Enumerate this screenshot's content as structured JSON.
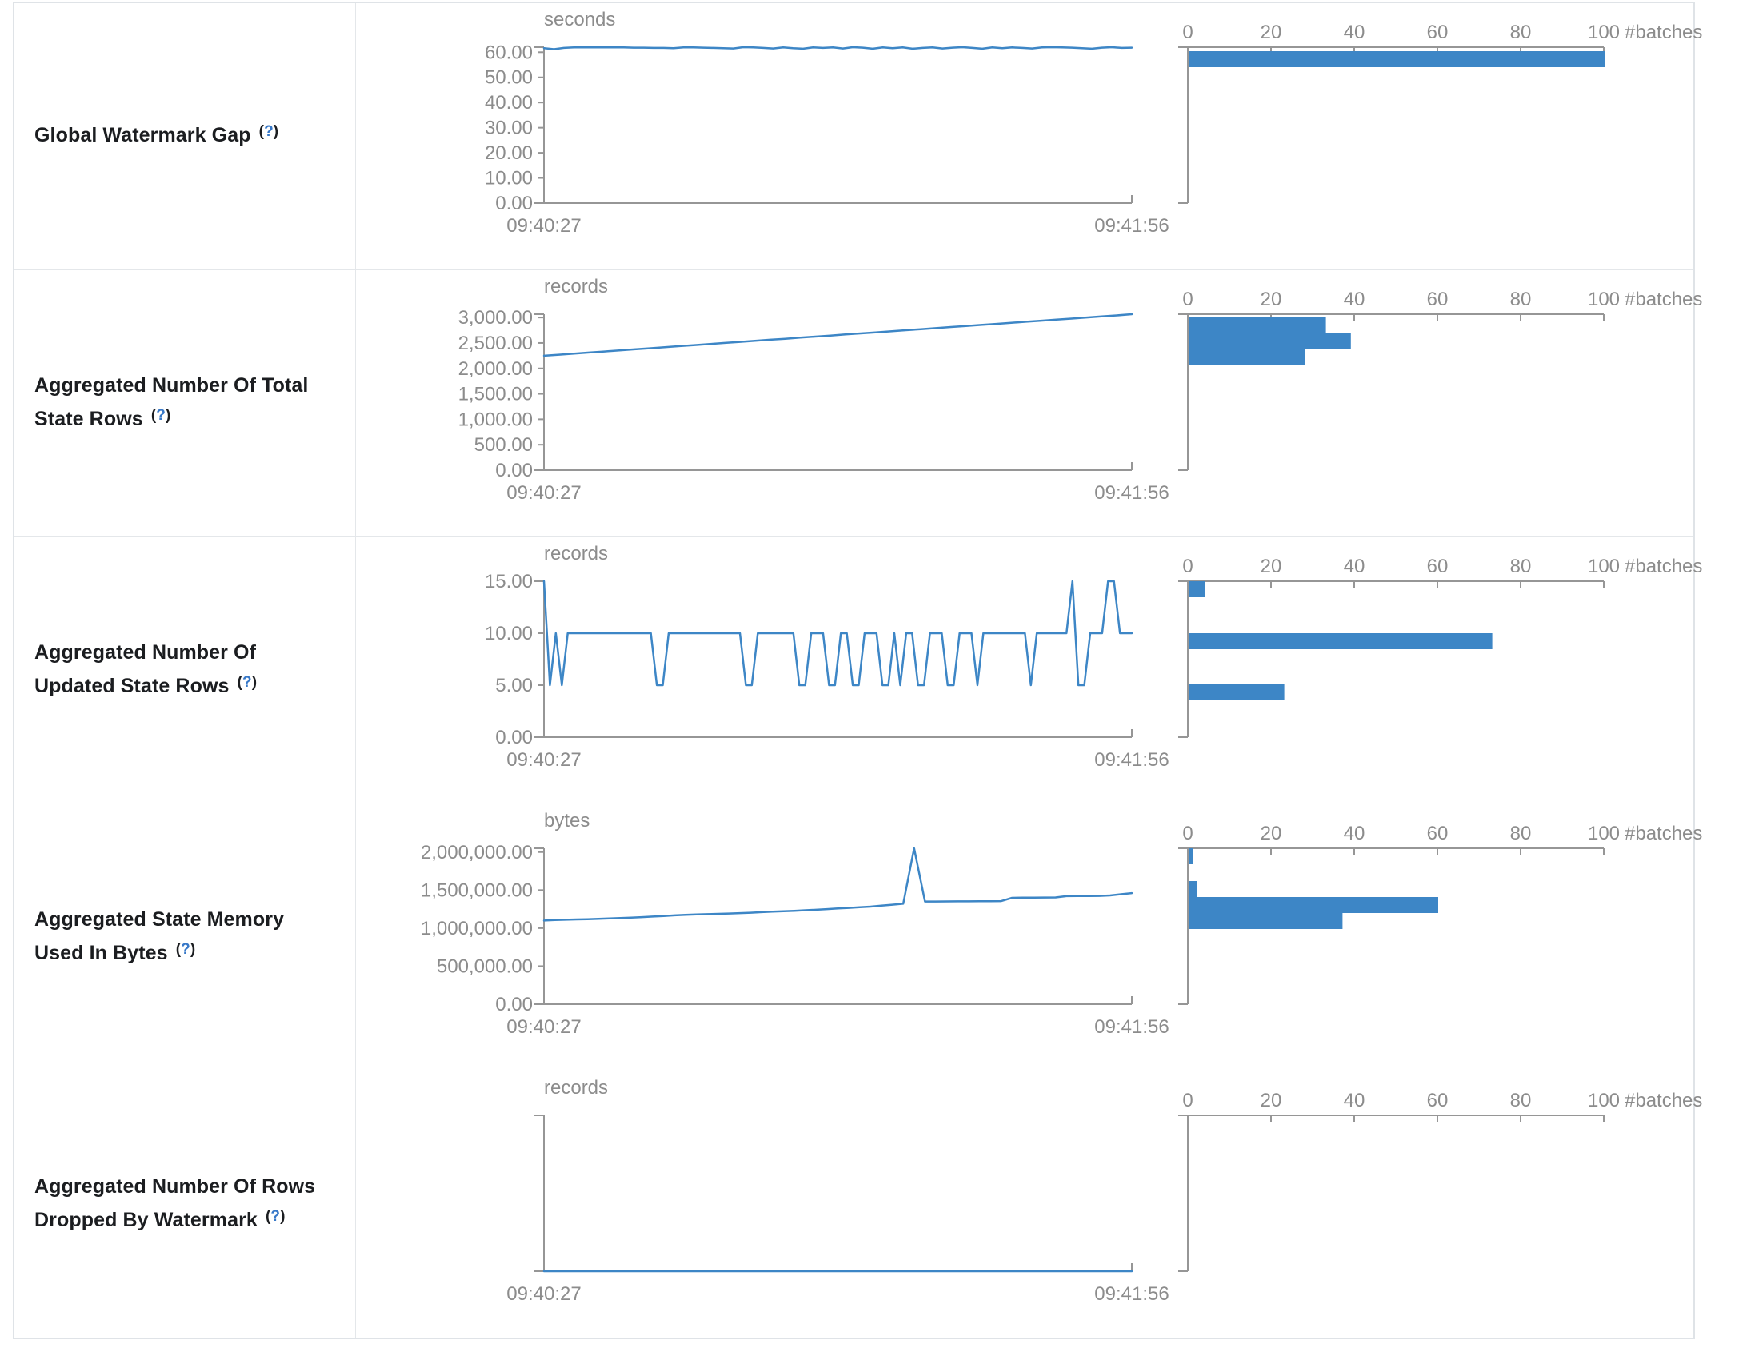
{
  "colors": {
    "series_blue": "#3d86c6",
    "axis_gray": "#969696",
    "tick_text_gray": "#8c8c8c",
    "label_text": "#1b1d20",
    "help_blue": "#3778c8",
    "border_gray": "#e4e7ea"
  },
  "time_axis": {
    "start": "09:40:27",
    "end": "09:41:56"
  },
  "histogram_axis": {
    "unit": "#batches",
    "max": 100,
    "ticks": [
      0,
      20,
      40,
      60,
      80,
      100
    ],
    "tick_labels": [
      "0",
      "20",
      "40",
      "60",
      "80",
      "100"
    ]
  },
  "rows": [
    {
      "label": "Global Watermark Gap",
      "help": "(?)",
      "timeline": {
        "type": "line",
        "unit": "seconds",
        "xlabel_start": "09:40:27",
        "xlabel_end": "09:41:56",
        "y_axis_max": 62,
        "ticks": [
          {
            "v": 0,
            "t": "0.00"
          },
          {
            "v": 10,
            "t": "10.00"
          },
          {
            "v": 20,
            "t": "20.00"
          },
          {
            "v": 30,
            "t": "30.00"
          },
          {
            "v": 40,
            "t": "40.00"
          },
          {
            "v": 50,
            "t": "50.00"
          },
          {
            "v": 60,
            "t": "60.00"
          }
        ],
        "values": [
          61.6,
          61.2,
          61.7,
          61.9,
          61.9,
          61.9,
          61.9,
          61.9,
          61.9,
          61.8,
          61.8,
          61.7,
          61.7,
          61.6,
          61.9,
          61.9,
          61.8,
          61.7,
          61.6,
          61.5,
          62.0,
          61.9,
          61.7,
          61.5,
          61.9,
          61.6,
          61.4,
          61.9,
          61.7,
          61.9,
          61.5,
          62.0,
          61.8,
          61.4,
          61.9,
          61.6,
          61.9,
          61.4,
          61.7,
          61.9,
          61.5,
          61.8,
          62.0,
          61.7,
          61.4,
          61.9,
          61.6,
          61.9,
          61.7,
          61.5,
          61.9,
          62.0,
          61.9,
          61.8,
          61.6,
          61.4,
          61.8,
          62.0,
          61.7,
          61.8
        ]
      },
      "histogram": {
        "type": "bar",
        "unit": "#batches",
        "bars": [
          {
            "count": 100,
            "offset": 5
          }
        ]
      }
    },
    {
      "label": "Aggregated Number Of Total State Rows",
      "help": "(?)",
      "timeline": {
        "type": "line",
        "unit": "records",
        "xlabel_start": "09:40:27",
        "xlabel_end": "09:41:56",
        "y_axis_max": 3065,
        "ticks": [
          {
            "v": 0,
            "t": "0.00"
          },
          {
            "v": 500,
            "t": "500.00"
          },
          {
            "v": 1000,
            "t": "1,000.00"
          },
          {
            "v": 1500,
            "t": "1,500.00"
          },
          {
            "v": 2000,
            "t": "2,000.00"
          },
          {
            "v": 2500,
            "t": "2,500.00"
          },
          {
            "v": 3000,
            "t": "3,000.00"
          }
        ],
        "values": [
          2250,
          2270,
          2291,
          2312,
          2333,
          2354,
          2375,
          2396,
          2417,
          2438,
          2458,
          2479,
          2500,
          2521,
          2542,
          2563,
          2583,
          2604,
          2625,
          2646,
          2667,
          2688,
          2708,
          2729,
          2750,
          2771,
          2792,
          2813,
          2833,
          2854,
          2875,
          2896,
          2917,
          2938,
          2958,
          2979,
          3000,
          3021,
          3042,
          3065
        ]
      },
      "histogram": {
        "type": "bar",
        "unit": "#batches",
        "bars": [
          {
            "count": 33,
            "offset": 4
          },
          {
            "count": 39,
            "offset": 24
          },
          {
            "count": 28,
            "offset": 44
          }
        ]
      }
    },
    {
      "label": "Aggregated Number Of Updated State Rows",
      "help": "(?)",
      "timeline": {
        "type": "line",
        "unit": "records",
        "xlabel_start": "09:40:27",
        "xlabel_end": "09:41:56",
        "y_axis_max": 15,
        "ticks": [
          {
            "v": 0,
            "t": "0.00"
          },
          {
            "v": 5,
            "t": "5.00"
          },
          {
            "v": 10,
            "t": "10.00"
          },
          {
            "v": 15,
            "t": "15.00"
          }
        ],
        "values": [
          15,
          5,
          10,
          5,
          10,
          10,
          10,
          10,
          10,
          10,
          10,
          10,
          10,
          10,
          10,
          10,
          10,
          10,
          10,
          5,
          5,
          10,
          10,
          10,
          10,
          10,
          10,
          10,
          10,
          10,
          10,
          10,
          10,
          10,
          5,
          5,
          10,
          10,
          10,
          10,
          10,
          10,
          10,
          5,
          5,
          10,
          10,
          10,
          5,
          5,
          10,
          10,
          5,
          5,
          10,
          10,
          10,
          5,
          5,
          10,
          5,
          10,
          10,
          5,
          5,
          10,
          10,
          10,
          5,
          5,
          10,
          10,
          10,
          5,
          10,
          10,
          10,
          10,
          10,
          10,
          10,
          10,
          5,
          10,
          10,
          10,
          10,
          10,
          10,
          15,
          5,
          5,
          10,
          10,
          10,
          15,
          15,
          10,
          10,
          10
        ]
      },
      "histogram": {
        "type": "bar",
        "unit": "#batches",
        "bars": [
          {
            "count": 4,
            "offset": 0
          },
          {
            "count": 73,
            "offset": 65
          },
          {
            "count": 23,
            "offset": 129
          }
        ]
      }
    },
    {
      "label": "Aggregated State Memory Used In Bytes",
      "help": "(?)",
      "timeline": {
        "type": "line",
        "unit": "bytes",
        "xlabel_start": "09:40:27",
        "xlabel_end": "09:41:56",
        "y_axis_max": 2050000,
        "ticks": [
          {
            "v": 0,
            "t": "0.00"
          },
          {
            "v": 500000,
            "t": "500,000.00"
          },
          {
            "v": 1000000,
            "t": "1,000,000.00"
          },
          {
            "v": 1500000,
            "t": "1,500,000.00"
          },
          {
            "v": 2000000,
            "t": "2,000,000.00"
          }
        ],
        "values": [
          1100000,
          1106000,
          1110000,
          1114000,
          1118000,
          1123000,
          1128000,
          1133000,
          1139000,
          1145000,
          1152000,
          1160000,
          1168000,
          1175000,
          1180000,
          1184000,
          1188000,
          1192000,
          1197000,
          1203000,
          1210000,
          1216000,
          1222000,
          1228000,
          1235000,
          1242000,
          1250000,
          1258000,
          1266000,
          1274000,
          1283000,
          1295000,
          1308000,
          1320000,
          2050000,
          1350000,
          1350000,
          1351000,
          1352000,
          1352000,
          1353000,
          1354000,
          1355000,
          1398000,
          1400000,
          1401000,
          1402000,
          1403000,
          1420000,
          1421000,
          1422000,
          1423000,
          1430000,
          1445000,
          1460000
        ]
      },
      "histogram": {
        "type": "bar",
        "unit": "#batches",
        "bars": [
          {
            "count": 1,
            "offset": 0
          },
          {
            "count": 2,
            "offset": 41
          },
          {
            "count": 60,
            "offset": 61
          },
          {
            "count": 37,
            "offset": 81
          }
        ]
      }
    },
    {
      "label": "Aggregated Number Of Rows Dropped By Watermark",
      "help": "(?)",
      "timeline": {
        "type": "line",
        "unit": "records",
        "xlabel_start": "09:40:27",
        "xlabel_end": "09:41:56",
        "y_axis_max": 1,
        "ticks": [],
        "values": [
          0,
          0,
          0,
          0,
          0,
          0,
          0,
          0,
          0,
          0,
          0,
          0,
          0,
          0,
          0,
          0,
          0,
          0,
          0,
          0,
          0,
          0,
          0,
          0,
          0,
          0,
          0,
          0,
          0,
          0
        ]
      },
      "histogram": {
        "type": "bar",
        "unit": "#batches",
        "bars": []
      }
    }
  ]
}
